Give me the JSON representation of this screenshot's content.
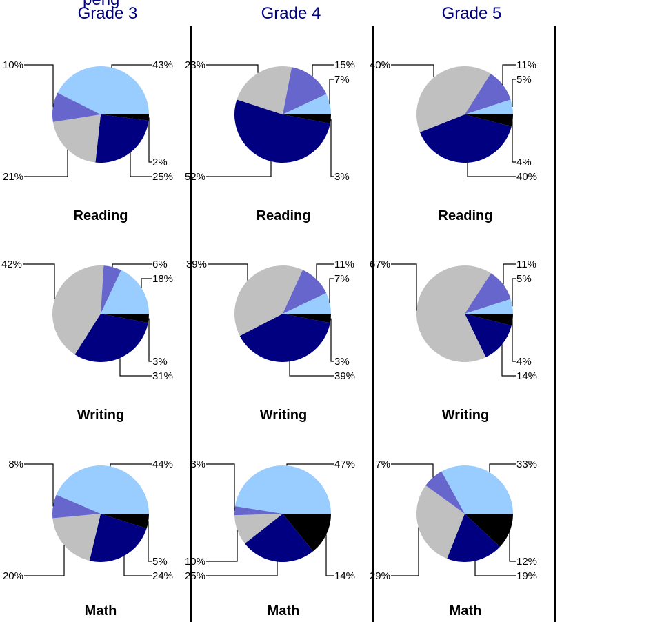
{
  "header_fragment": "peng",
  "grades": [
    "Grade 3",
    "Grade 4",
    "Grade 5"
  ],
  "subjects": [
    "Reading",
    "Writing",
    "Math"
  ],
  "colors": {
    "light_blue": "#99ccff",
    "medium_blue": "#6666cc",
    "gray": "#c0c0c0",
    "navy": "#000080",
    "black": "#000000"
  },
  "chart_data": [
    {
      "type": "pie",
      "grade": "Grade 3",
      "subject": "Reading",
      "slices": [
        {
          "color": "black",
          "value": 2,
          "label": "2%"
        },
        {
          "color": "navy",
          "value": 25,
          "label": "25%"
        },
        {
          "color": "gray",
          "value": 21,
          "label": "21%"
        },
        {
          "color": "medium_blue",
          "value": 10,
          "label": "10%"
        },
        {
          "color": "light_blue",
          "value": 43,
          "label": "43%"
        }
      ]
    },
    {
      "type": "pie",
      "grade": "Grade 4",
      "subject": "Reading",
      "slices": [
        {
          "color": "black",
          "value": 3,
          "label": "3%"
        },
        {
          "color": "navy",
          "value": 52,
          "label": "52%"
        },
        {
          "color": "gray",
          "value": 23,
          "label": "23%"
        },
        {
          "color": "medium_blue",
          "value": 15,
          "label": "15%"
        },
        {
          "color": "light_blue",
          "value": 7,
          "label": "7%"
        }
      ]
    },
    {
      "type": "pie",
      "grade": "Grade 5",
      "subject": "Reading",
      "slices": [
        {
          "color": "black",
          "value": 4,
          "label": "4%"
        },
        {
          "color": "navy",
          "value": 40,
          "label": "40%"
        },
        {
          "color": "gray",
          "value": 40,
          "label": "40%"
        },
        {
          "color": "medium_blue",
          "value": 11,
          "label": "11%"
        },
        {
          "color": "light_blue",
          "value": 5,
          "label": "5%"
        }
      ]
    },
    {
      "type": "pie",
      "grade": "Grade 3",
      "subject": "Writing",
      "slices": [
        {
          "color": "black",
          "value": 3,
          "label": "3%"
        },
        {
          "color": "navy",
          "value": 31,
          "label": "31%"
        },
        {
          "color": "gray",
          "value": 42,
          "label": "42%"
        },
        {
          "color": "medium_blue",
          "value": 6,
          "label": "6%"
        },
        {
          "color": "light_blue",
          "value": 18,
          "label": "18%"
        }
      ]
    },
    {
      "type": "pie",
      "grade": "Grade 4",
      "subject": "Writing",
      "slices": [
        {
          "color": "black",
          "value": 3,
          "label": "3%"
        },
        {
          "color": "navy",
          "value": 39,
          "label": "39%"
        },
        {
          "color": "gray",
          "value": 39,
          "label": "39%"
        },
        {
          "color": "medium_blue",
          "value": 11,
          "label": "11%"
        },
        {
          "color": "light_blue",
          "value": 7,
          "label": "7%"
        }
      ]
    },
    {
      "type": "pie",
      "grade": "Grade 5",
      "subject": "Writing",
      "slices": [
        {
          "color": "black",
          "value": 4,
          "label": "4%"
        },
        {
          "color": "navy",
          "value": 14,
          "label": "14%"
        },
        {
          "color": "gray",
          "value": 67,
          "label": "67%"
        },
        {
          "color": "medium_blue",
          "value": 11,
          "label": "11%"
        },
        {
          "color": "light_blue",
          "value": 5,
          "label": "5%"
        }
      ]
    },
    {
      "type": "pie",
      "grade": "Grade 3",
      "subject": "Math",
      "slices": [
        {
          "color": "black",
          "value": 5,
          "label": "5%"
        },
        {
          "color": "navy",
          "value": 24,
          "label": "24%"
        },
        {
          "color": "gray",
          "value": 20,
          "label": "20%"
        },
        {
          "color": "medium_blue",
          "value": 8,
          "label": "8%"
        },
        {
          "color": "light_blue",
          "value": 44,
          "label": "44%"
        }
      ]
    },
    {
      "type": "pie",
      "grade": "Grade 4",
      "subject": "Math",
      "slices": [
        {
          "color": "black",
          "value": 14,
          "label": "14%"
        },
        {
          "color": "navy",
          "value": 25,
          "label": "25%"
        },
        {
          "color": "gray",
          "value": 10,
          "label": "10%"
        },
        {
          "color": "medium_blue",
          "value": 3,
          "label": "3%"
        },
        {
          "color": "light_blue",
          "value": 47,
          "label": "47%"
        }
      ]
    },
    {
      "type": "pie",
      "grade": "Grade 5",
      "subject": "Math",
      "slices": [
        {
          "color": "black",
          "value": 12,
          "label": "12%"
        },
        {
          "color": "navy",
          "value": 19,
          "label": "19%"
        },
        {
          "color": "gray",
          "value": 29,
          "label": "29%"
        },
        {
          "color": "medium_blue",
          "value": 7,
          "label": "7%"
        },
        {
          "color": "light_blue",
          "value": 33,
          "label": "33%"
        }
      ]
    }
  ]
}
